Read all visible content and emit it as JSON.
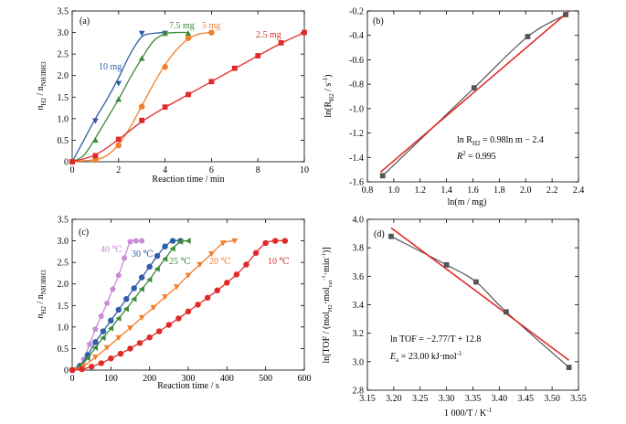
{
  "chart_data": [
    {
      "panel": "(a)",
      "type": "line",
      "xlabel": "Reaction time / min",
      "ylabel_main": "n",
      "ylabel_sub1": "H2",
      "ylabel_mid": " / n",
      "ylabel_sub2": "NH3BH3",
      "xlim": [
        0,
        10
      ],
      "ylim": [
        0,
        3.5
      ],
      "xticks": [
        0,
        2,
        4,
        6,
        8,
        10
      ],
      "yticks": [
        0,
        0.5,
        1.0,
        1.5,
        2.0,
        2.5,
        3.0,
        3.5
      ],
      "ytick_labels": [
        "0",
        "0.5",
        "1.0",
        "1.5",
        "2.0",
        "2.5",
        "3.0",
        "3.5"
      ],
      "series": [
        {
          "name": "10 mg",
          "color": "#2f5ea8",
          "marker": "triangle-down",
          "x": [
            0,
            1,
            2,
            3,
            4
          ],
          "y": [
            0,
            0.95,
            1.82,
            2.98,
            2.98
          ],
          "curve_x": [
            0,
            0.5,
            1,
            1.5,
            2,
            2.5,
            3,
            3.5,
            4
          ],
          "curve_y": [
            0,
            0.5,
            1.0,
            1.45,
            1.95,
            2.5,
            2.9,
            2.98,
            3.0
          ]
        },
        {
          "name": "7.5 mg",
          "color": "#3d8b3d",
          "marker": "triangle-up",
          "x": [
            0,
            1,
            2,
            3,
            4,
            5
          ],
          "y": [
            0,
            0.5,
            1.45,
            2.4,
            2.98,
            2.98
          ],
          "curve_x": [
            0,
            0.5,
            1,
            1.5,
            2,
            2.5,
            3,
            3.5,
            4,
            4.5,
            5
          ],
          "curve_y": [
            0,
            0.15,
            0.55,
            1.0,
            1.45,
            1.95,
            2.4,
            2.8,
            2.97,
            3.0,
            3.0
          ]
        },
        {
          "name": "5 mg",
          "color": "#f07e2a",
          "marker": "circle",
          "x": [
            0,
            1,
            2,
            3,
            4,
            5,
            6
          ],
          "y": [
            0,
            0.04,
            0.38,
            1.28,
            2.2,
            2.87,
            3.0
          ],
          "curve_x": [
            0,
            1,
            1.5,
            2,
            2.5,
            3,
            3.5,
            4,
            4.5,
            5,
            5.5,
            6
          ],
          "curve_y": [
            0,
            0.05,
            0.15,
            0.4,
            0.8,
            1.3,
            1.8,
            2.25,
            2.6,
            2.85,
            2.97,
            3.0
          ]
        },
        {
          "name": "2.5 mg",
          "color": "#e02a2a",
          "marker": "square",
          "x": [
            0,
            1,
            2,
            3,
            4,
            5,
            6,
            7,
            8,
            9,
            10
          ],
          "y": [
            0,
            0.14,
            0.52,
            0.96,
            1.27,
            1.56,
            1.86,
            2.17,
            2.46,
            2.76,
            3.0
          ],
          "curve_x": [
            0,
            1,
            2,
            3,
            4,
            5,
            6,
            7,
            8,
            9,
            10
          ],
          "curve_y": [
            0,
            0.16,
            0.52,
            0.93,
            1.26,
            1.56,
            1.86,
            2.16,
            2.46,
            2.75,
            3.0
          ]
        }
      ]
    },
    {
      "panel": "(b)",
      "type": "scatter",
      "xlabel": "ln(m / mg)",
      "ylabel_main": "ln(R",
      "ylabel_sub1": "H2",
      "ylabel_mid": " / s",
      "ylabel_sup": "-1",
      "ylabel_end": ")",
      "xlim": [
        0.8,
        2.4
      ],
      "ylim": [
        -1.6,
        -0.2
      ],
      "xticks": [
        0.8,
        1.0,
        1.2,
        1.4,
        1.6,
        1.8,
        2.0,
        2.2,
        2.4
      ],
      "xtick_labels": [
        "0.8",
        "1.0",
        "1.2",
        "1.4",
        "1.6",
        "1.8",
        "2.0",
        "2.2",
        "2.4"
      ],
      "yticks": [
        -1.6,
        -1.4,
        -1.2,
        -1.0,
        -0.8,
        -0.6,
        -0.4,
        -0.2
      ],
      "ytick_labels": [
        "-1.6",
        "-1.4",
        "-1.2",
        "-1.0",
        "-0.8",
        "-0.6",
        "-0.4",
        "-0.2"
      ],
      "points": {
        "x": [
          0.916,
          1.609,
          2.015,
          2.303
        ],
        "y": [
          -1.55,
          -0.83,
          -0.41,
          -0.23
        ]
      },
      "fit": {
        "x": [
          0.9,
          2.33
        ],
        "y": [
          -1.52,
          -0.2
        ]
      },
      "equation_prefix": "ln R",
      "equation_sub": "H2",
      "equation_rest": " = 0.98ln m − 2.4",
      "r2_label": "R",
      "r2_sup": "2",
      "r2_value": " = 0.995",
      "point_color": "#555555",
      "fit_color": "#e02a2a"
    },
    {
      "panel": "(c)",
      "type": "line",
      "xlabel": "Reaction time / s",
      "ylabel_main": "n",
      "ylabel_sub1": "H2",
      "ylabel_mid": " / n",
      "ylabel_sub2": "NH3BH3",
      "xlim": [
        0,
        600
      ],
      "ylim": [
        0,
        3.5
      ],
      "xticks": [
        0,
        100,
        200,
        300,
        400,
        500,
        600
      ],
      "yticks": [
        0,
        0.5,
        1.0,
        1.5,
        2.0,
        2.5,
        3.0,
        3.5
      ],
      "ytick_labels": [
        "0",
        "0.5",
        "1.0",
        "1.5",
        "2.0",
        "2.5",
        "3.0",
        "3.5"
      ],
      "series": [
        {
          "name": "40 ℃",
          "color": "#c98ad6",
          "marker": "pentagon",
          "x": [
            0,
            15,
            30,
            45,
            60,
            75,
            90,
            105,
            120,
            135,
            150,
            165,
            180
          ],
          "y": [
            0,
            0.05,
            0.25,
            0.6,
            0.95,
            1.25,
            1.55,
            1.88,
            2.2,
            2.6,
            2.98,
            3.0,
            3.0
          ]
        },
        {
          "name": "30 ℃",
          "color": "#2f5ea8",
          "marker": "circle",
          "x": [
            0,
            20,
            40,
            60,
            80,
            100,
            120,
            140,
            160,
            180,
            200,
            220,
            240,
            260,
            280
          ],
          "y": [
            0,
            0.1,
            0.35,
            0.65,
            0.9,
            1.15,
            1.4,
            1.65,
            1.9,
            2.15,
            2.4,
            2.65,
            2.87,
            3.0,
            3.0
          ]
        },
        {
          "name": "25 ℃",
          "color": "#3d8b3d",
          "marker": "triangle-left",
          "x": [
            0,
            20,
            40,
            60,
            80,
            100,
            120,
            140,
            160,
            180,
            200,
            220,
            240,
            260,
            280,
            300
          ],
          "y": [
            0,
            0.08,
            0.28,
            0.52,
            0.75,
            0.97,
            1.2,
            1.42,
            1.65,
            1.88,
            2.1,
            2.35,
            2.58,
            2.82,
            2.98,
            3.0
          ]
        },
        {
          "name": "20 ℃",
          "color": "#f07e2a",
          "marker": "triangle-down",
          "x": [
            0,
            30,
            60,
            90,
            120,
            150,
            180,
            210,
            240,
            270,
            300,
            330,
            360,
            390,
            420
          ],
          "y": [
            0,
            0.1,
            0.3,
            0.52,
            0.75,
            0.98,
            1.22,
            1.45,
            1.7,
            1.93,
            2.2,
            2.45,
            2.7,
            2.95,
            3.0
          ]
        },
        {
          "name": "10 ℃",
          "color": "#e02a2a",
          "marker": "circle",
          "x": [
            0,
            25,
            50,
            75,
            100,
            125,
            150,
            175,
            200,
            225,
            250,
            275,
            300,
            325,
            350,
            375,
            400,
            425,
            450,
            475,
            500,
            525,
            550
          ],
          "y": [
            0,
            0.02,
            0.08,
            0.16,
            0.27,
            0.38,
            0.5,
            0.63,
            0.76,
            0.9,
            1.05,
            1.2,
            1.36,
            1.52,
            1.68,
            1.85,
            2.03,
            2.22,
            2.45,
            2.72,
            2.95,
            3.0,
            3.0
          ]
        }
      ]
    },
    {
      "panel": "(d)",
      "type": "scatter",
      "xlabel": "1 000/T / K",
      "xlabel_sup": "-1",
      "ylabel_text": "ln[TOF / (mol",
      "ylabel_sub1": "H2",
      "ylabel_mid": "·mol",
      "ylabel_sub2": "cat",
      "ylabel_sup1": "-1",
      "ylabel_mid2": "·min",
      "ylabel_sup2": "-1",
      "ylabel_end": ")]",
      "xlim": [
        3.15,
        3.55
      ],
      "ylim": [
        2.8,
        4.0
      ],
      "xticks": [
        3.15,
        3.2,
        3.25,
        3.3,
        3.35,
        3.4,
        3.45,
        3.5,
        3.55
      ],
      "xtick_labels": [
        "3.15",
        "3.20",
        "3.25",
        "3.30",
        "3.35",
        "3.40",
        "3.45",
        "3.50",
        "3.55"
      ],
      "yticks": [
        2.8,
        3.0,
        3.2,
        3.4,
        3.6,
        3.8,
        4.0
      ],
      "ytick_labels": [
        "2.8",
        "3.0",
        "3.2",
        "3.4",
        "3.6",
        "3.8",
        "4.0"
      ],
      "points": {
        "x": [
          3.195,
          3.3,
          3.356,
          3.413,
          3.532
        ],
        "y": [
          3.88,
          3.68,
          3.56,
          3.35,
          2.96
        ]
      },
      "fit": {
        "x": [
          3.195,
          3.532
        ],
        "y": [
          3.94,
          3.01
        ]
      },
      "equation": "ln TOF = −2.77/T + 12.8",
      "ea_label": "E",
      "ea_sub": "a",
      "ea_value": " = 23.00 kJ·mol",
      "ea_sup": "-1",
      "point_color": "#555555",
      "fit_color": "#e02a2a"
    }
  ]
}
